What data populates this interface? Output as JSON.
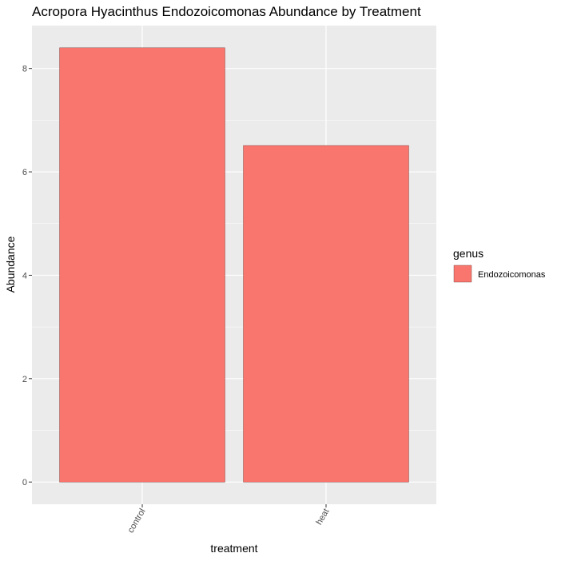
{
  "chart_data": {
    "type": "bar",
    "title": "Acropora Hyacinthus Endozoicomonas Abundance by Treatment",
    "xlabel": "treatment",
    "ylabel": "Abundance",
    "categories": [
      "control",
      "heat"
    ],
    "series": [
      {
        "name": "Endozoicomonas",
        "values": [
          8.4,
          6.51
        ]
      }
    ],
    "ylim": [
      -0.43,
      8.83
    ],
    "yticks": [
      0,
      2,
      4,
      6,
      8
    ],
    "ytick_labels": [
      "0",
      "2",
      "4",
      "6",
      "8"
    ],
    "grid": true,
    "legend": {
      "title": "genus",
      "position": "right"
    },
    "colors": {
      "panel": "#ebebeb",
      "grid": "#ffffff",
      "bar": "#f8766d",
      "bar_outline": "#6e3a36"
    }
  }
}
